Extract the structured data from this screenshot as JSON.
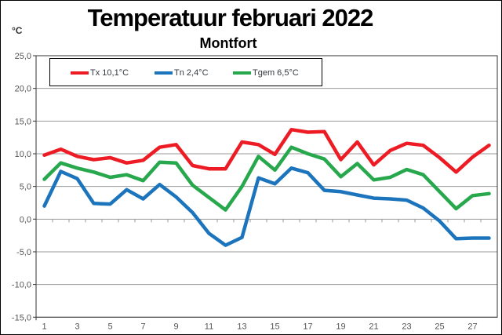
{
  "header": {
    "title": "Temperatuur februari 2022",
    "subtitle": "Montfort",
    "y_unit": "°C"
  },
  "legend": {
    "items": [
      {
        "label": "Tx 10,1°C",
        "color": "#ed1c24"
      },
      {
        "label": "Tn 2,4°C",
        "color": "#1c75bc"
      },
      {
        "label": "Tgem 6,5°C",
        "color": "#28a84d"
      }
    ]
  },
  "colors": {
    "grid": "#999999",
    "plot_border": "#333333",
    "axis_text": "#545454",
    "background": "#ffffff"
  },
  "chart_data": {
    "type": "line",
    "title": "Temperatuur februari 2022",
    "subtitle": "Montfort",
    "ylabel": "°C",
    "xlabel": "",
    "grid": true,
    "legend_position": "top-left-inside",
    "ylim": [
      -15,
      25
    ],
    "ytick_step": 5,
    "ytick_labels": [
      "25,0",
      "20,0",
      "15,0",
      "10,0",
      "5,0",
      "0,0",
      "-5,0",
      "-10,0",
      "-15,0"
    ],
    "ytick_values": [
      25,
      20,
      15,
      10,
      5,
      0,
      -5,
      -10,
      -15
    ],
    "x": [
      1,
      2,
      3,
      4,
      5,
      6,
      7,
      8,
      9,
      10,
      11,
      12,
      13,
      14,
      15,
      16,
      17,
      18,
      19,
      20,
      21,
      22,
      23,
      24,
      25,
      26,
      27,
      28
    ],
    "xtick_labels": [
      "1",
      "3",
      "5",
      "7",
      "9",
      "11",
      "13",
      "15",
      "17",
      "19",
      "21",
      "23",
      "25",
      "27"
    ],
    "xtick_values": [
      1,
      3,
      5,
      7,
      9,
      11,
      13,
      15,
      17,
      19,
      21,
      23,
      25,
      27
    ],
    "series": [
      {
        "name": "Tx",
        "legend_label": "Tx 10,1°C",
        "mean": 10.1,
        "color": "#ed1c24",
        "values": [
          9.8,
          10.7,
          9.6,
          9.1,
          9.4,
          8.6,
          9.0,
          11.0,
          11.4,
          8.2,
          7.7,
          7.7,
          11.8,
          11.4,
          9.9,
          13.7,
          13.3,
          13.4,
          9.1,
          11.8,
          8.3,
          10.5,
          11.6,
          11.3,
          9.4,
          7.2,
          9.5,
          11.3
        ]
      },
      {
        "name": "Tn",
        "legend_label": "Tn 2,4°C",
        "mean": 2.4,
        "color": "#1c75bc",
        "values": [
          2.0,
          7.3,
          6.2,
          2.4,
          2.3,
          4.5,
          3.1,
          5.3,
          3.4,
          1.0,
          -2.2,
          -4.0,
          -2.8,
          6.3,
          5.4,
          7.8,
          7.1,
          4.4,
          4.2,
          3.7,
          3.2,
          3.1,
          2.9,
          1.7,
          -0.3,
          -3.0,
          -2.9,
          -2.9
        ]
      },
      {
        "name": "Tgem",
        "legend_label": "Tgem 6,5°C",
        "mean": 6.5,
        "color": "#28a84d",
        "values": [
          6.1,
          8.6,
          7.8,
          7.2,
          6.4,
          6.8,
          5.9,
          8.7,
          8.6,
          5.2,
          3.3,
          1.4,
          5.0,
          9.6,
          7.5,
          11.0,
          10.0,
          9.2,
          6.5,
          8.5,
          6.0,
          6.4,
          7.6,
          6.8,
          4.2,
          1.6,
          3.6,
          3.9
        ]
      }
    ]
  }
}
